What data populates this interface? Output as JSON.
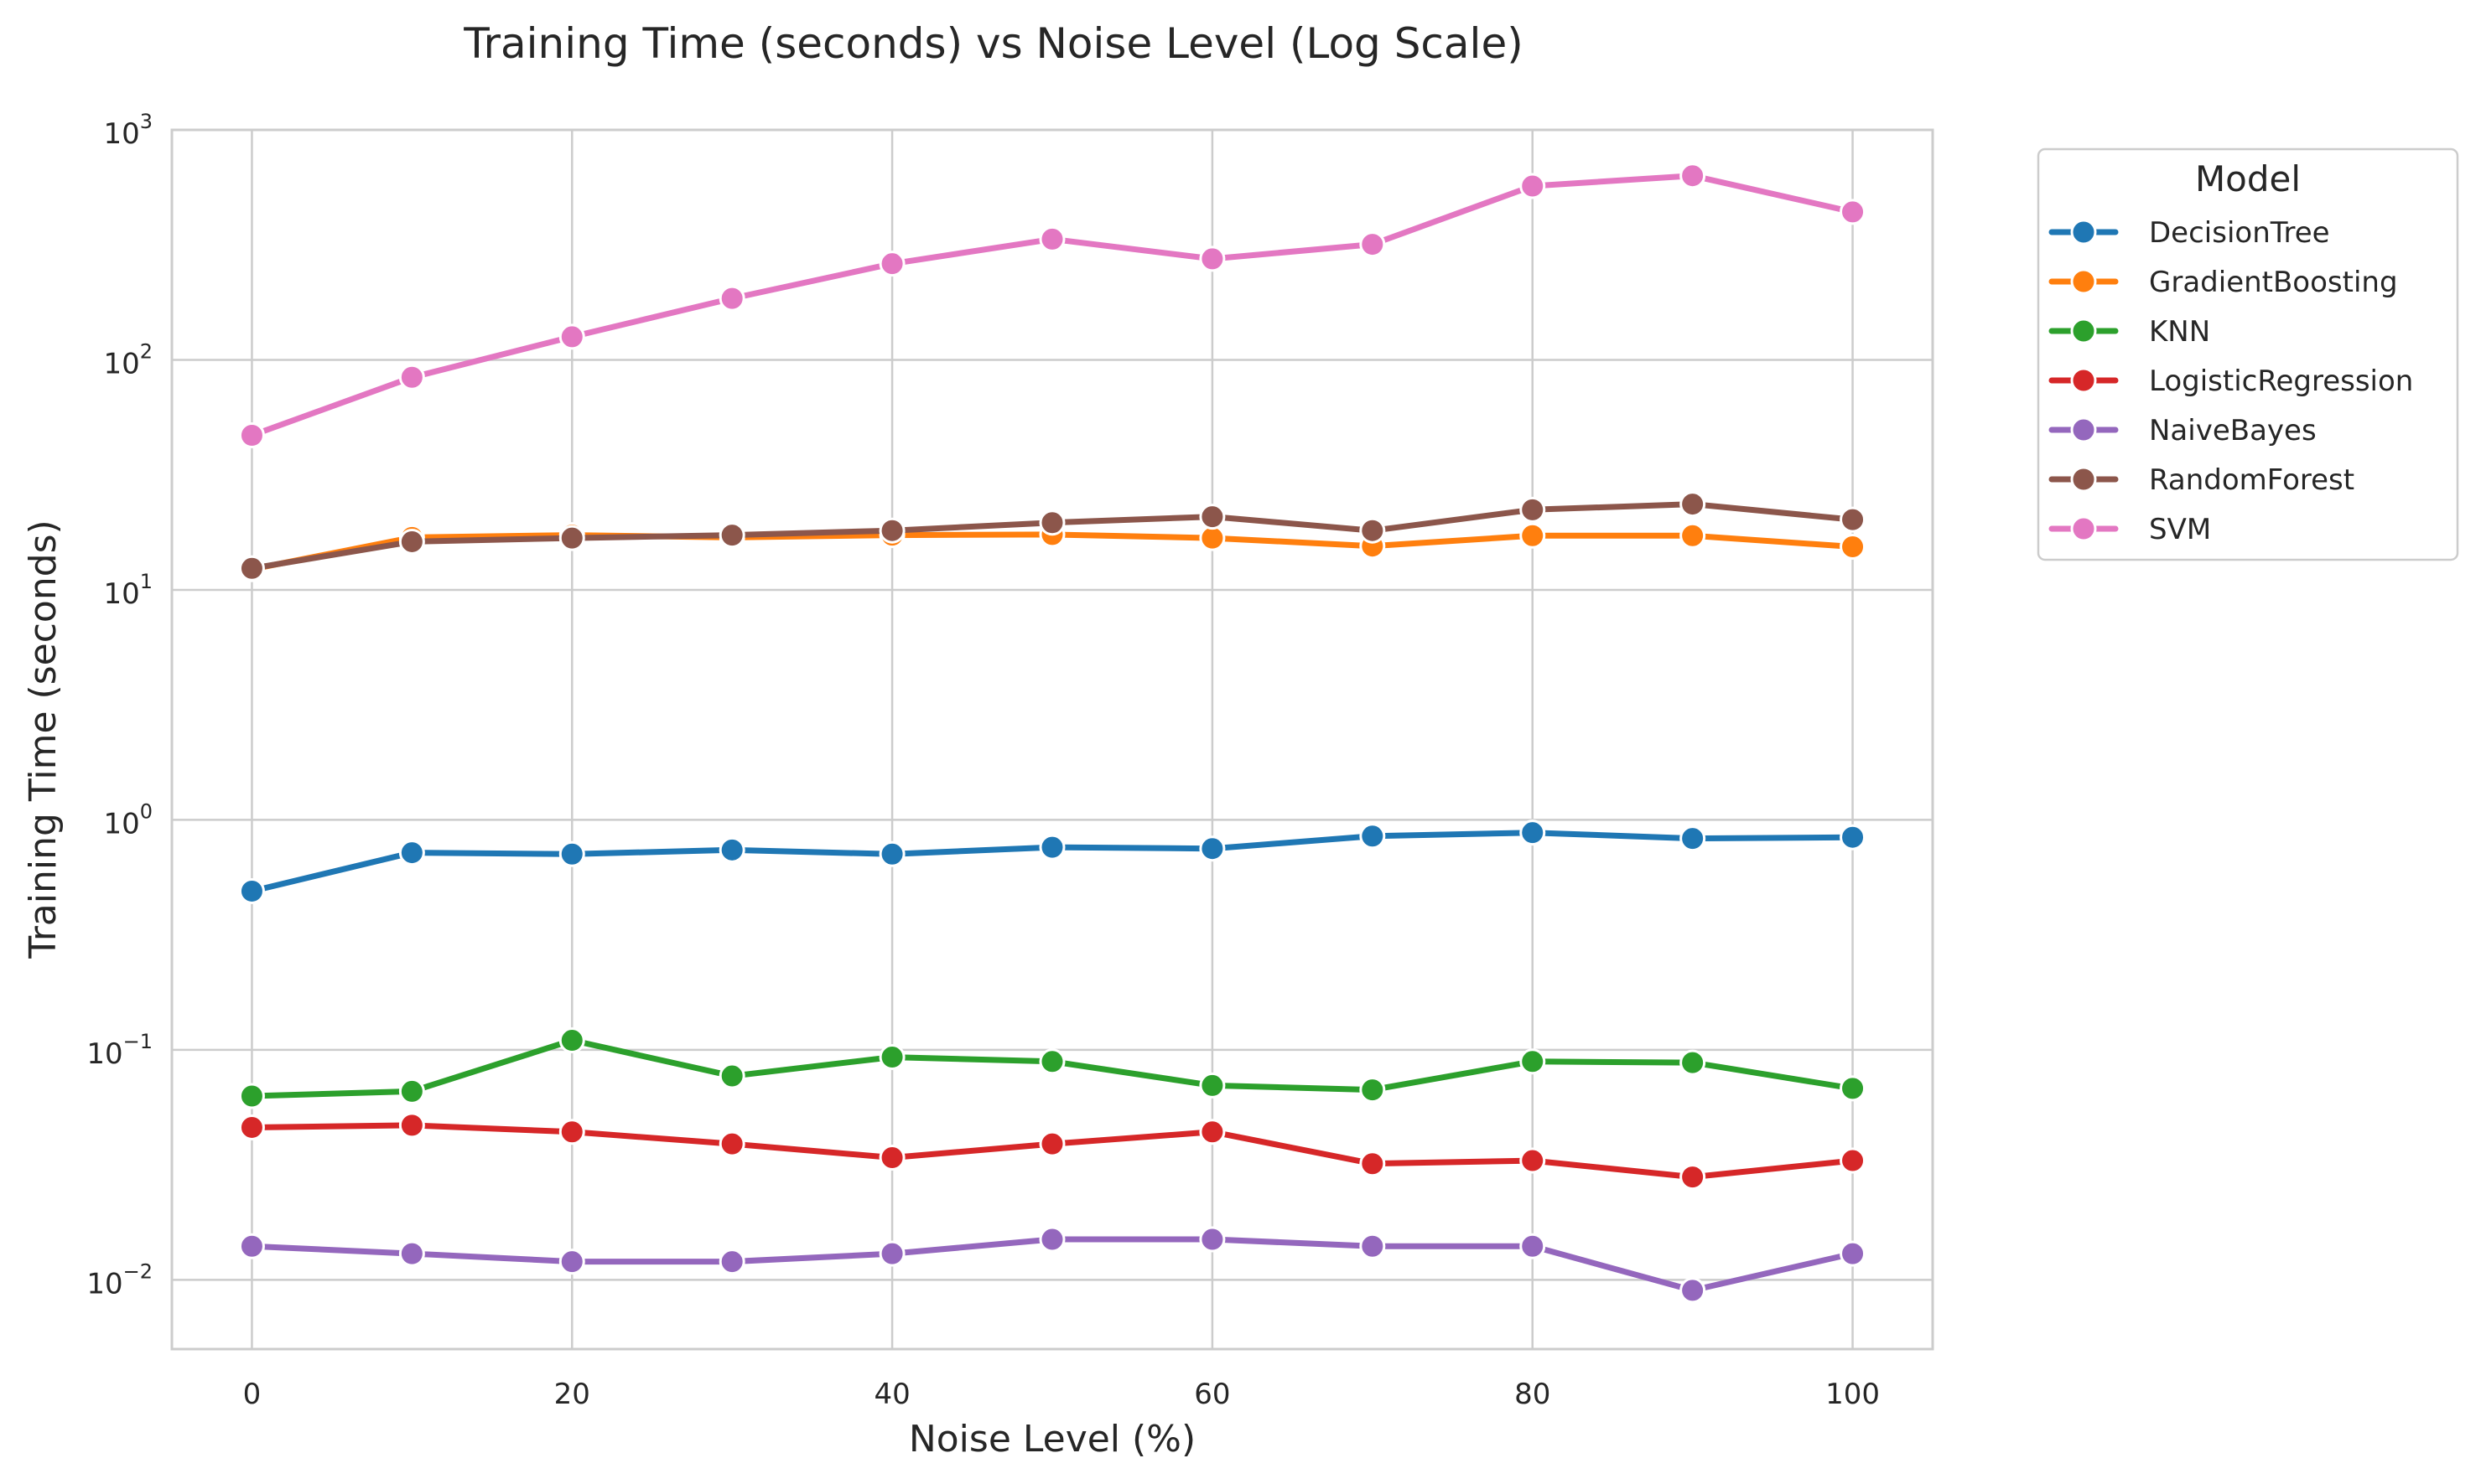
{
  "chart_data": {
    "type": "line",
    "title": "Training Time (seconds) vs Noise Level (Log Scale)",
    "xlabel": "Noise Level (%)",
    "ylabel": "Training Time (seconds)",
    "x": [
      0,
      10,
      20,
      30,
      40,
      50,
      60,
      70,
      80,
      90,
      100
    ],
    "xlim": [
      -5,
      105
    ],
    "ylim": [
      0.005,
      1000
    ],
    "yscale": "log",
    "x_ticks": [
      {
        "value": 0,
        "label": "0"
      },
      {
        "value": 20,
        "label": "20"
      },
      {
        "value": 40,
        "label": "40"
      },
      {
        "value": 60,
        "label": "60"
      },
      {
        "value": 80,
        "label": "80"
      },
      {
        "value": 100,
        "label": "100"
      }
    ],
    "y_ticks": [
      {
        "value": 0.01,
        "base": "10",
        "exp": "−2"
      },
      {
        "value": 0.1,
        "base": "10",
        "exp": "−1"
      },
      {
        "value": 1,
        "base": "10",
        "exp": "0"
      },
      {
        "value": 10,
        "base": "10",
        "exp": "1"
      },
      {
        "value": 100,
        "base": "10",
        "exp": "2"
      },
      {
        "value": 1000,
        "base": "10",
        "exp": "3"
      }
    ],
    "grid": true,
    "legend": {
      "title": "Model",
      "placement": "outside top-right"
    },
    "series": [
      {
        "name": "DecisionTree",
        "color": "#1f77b4",
        "values": [
          0.49,
          0.72,
          0.71,
          0.74,
          0.71,
          0.76,
          0.75,
          0.85,
          0.88,
          0.83,
          0.84
        ]
      },
      {
        "name": "GradientBoosting",
        "color": "#ff7f0e",
        "values": [
          12.3,
          16.9,
          17.3,
          16.9,
          17.3,
          17.4,
          16.8,
          15.5,
          17.2,
          17.2,
          15.4
        ]
      },
      {
        "name": "KNN",
        "color": "#2ca02c",
        "values": [
          0.063,
          0.066,
          0.11,
          0.077,
          0.093,
          0.089,
          0.07,
          0.067,
          0.089,
          0.088,
          0.068
        ]
      },
      {
        "name": "LogisticRegression",
        "color": "#d62728",
        "values": [
          0.046,
          0.047,
          0.044,
          0.039,
          0.034,
          0.039,
          0.044,
          0.032,
          0.033,
          0.028,
          0.033
        ]
      },
      {
        "name": "NaiveBayes",
        "color": "#9467bd",
        "values": [
          0.014,
          0.013,
          0.012,
          0.012,
          0.013,
          0.015,
          0.015,
          0.014,
          0.014,
          0.009,
          0.013
        ]
      },
      {
        "name": "RandomForest",
        "color": "#8c564b",
        "values": [
          12.4,
          16.2,
          16.8,
          17.3,
          18.1,
          19.6,
          20.8,
          18.1,
          22.3,
          23.6,
          20.2
        ]
      },
      {
        "name": "SVM",
        "color": "#e377c2",
        "values": [
          47,
          84,
          126,
          185,
          262,
          335,
          275,
          318,
          570,
          632,
          440
        ]
      }
    ]
  }
}
